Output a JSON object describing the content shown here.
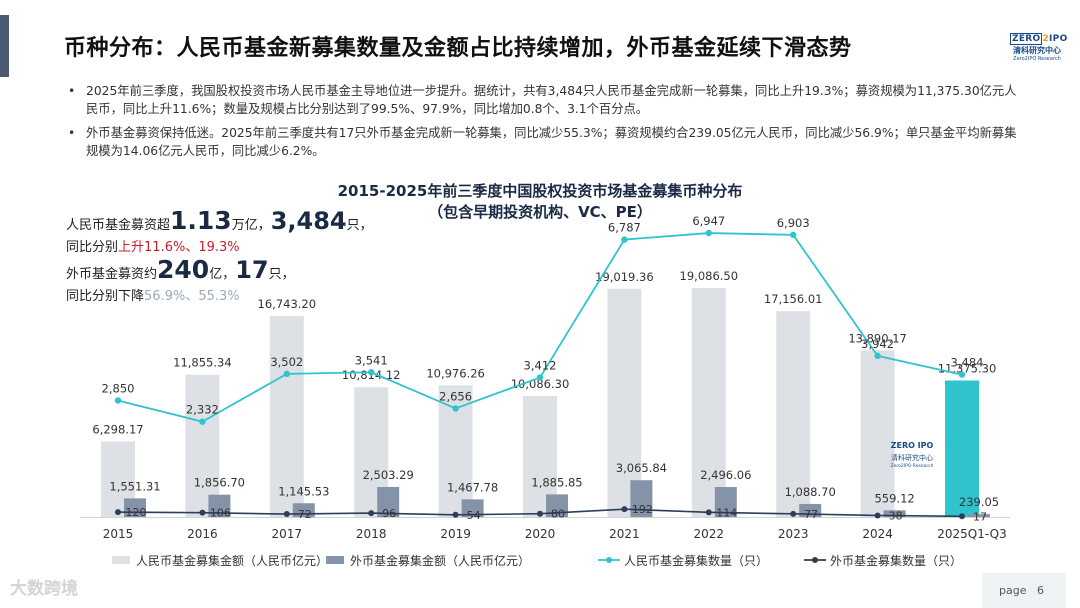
{
  "header": {
    "title": "币种分布：人民币基金新募集数量及金额占比持续增加，外币基金延续下滑态势"
  },
  "logo": {
    "line1a": "ZERO",
    "line1b": "IPO",
    "line2": "清科研究中心",
    "line3": "Zero2IPO Research"
  },
  "bullets": [
    {
      "marker": "•",
      "text": "2025年前三季度，我国股权投资市场人民币基金主导地位进一步提升。据统计，共有3,484只人民币基金完成新一轮募集，同比上升19.3%；募资规模为11,375.30亿元人民币，同比上升11.6%；数量及规模占比分别达到了99.5%、97.9%，同比增加0.8个、3.1个百分点。"
    },
    {
      "marker": "•",
      "text": "外币基金募资保持低迷。2025年前三季度共有17只外币基金完成新一轮募集，同比减少55.3%；募资规模约合239.05亿元人民币，同比减少56.9%；单只基金平均新募集规模为14.06亿元人民币，同比减少6.2%。"
    }
  ],
  "annotations": {
    "rmb_line1_pre": "人民币基金募资超",
    "rmb_line1_big": "1.13",
    "rmb_line1_unit": "万亿，",
    "rmb_line1_num": "3,484",
    "rmb_line1_unit2": "只，",
    "rmb_line2_pre": "同比分别",
    "rmb_line2_red": "上升11.6%、19.3%",
    "fx_line1_pre": "外币基金募资约",
    "fx_line1_big": "240",
    "fx_line1_unit": "亿，",
    "fx_line1_num": "17",
    "fx_line1_unit2": "只，",
    "fx_line2_pre": "同比分别下降",
    "fx_line2_gray": "56.9%、55.3%"
  },
  "footer": {
    "page_label": "page",
    "page_number": "6",
    "watermark": "大数跨境"
  },
  "chart_data": {
    "type": "bar",
    "title_line1": "2015-2025年前三季度中国股权投资市场基金募集币种分布",
    "title_line2": "（包含早期投资机构、VC、PE）",
    "categories": [
      "2015",
      "2016",
      "2017",
      "2018",
      "2019",
      "2020",
      "2021",
      "2022",
      "2023",
      "2024",
      "2025Q1-Q3"
    ],
    "series": [
      {
        "name": "人民币基金募集金额（人民币亿元）",
        "kind": "bar",
        "axis": "left",
        "color": "#dde1e6",
        "last_color": "#2fc4cc",
        "values": [
          6298.17,
          11855.34,
          16743.2,
          10814.12,
          10976.26,
          10086.3,
          19019.36,
          19086.5,
          17156.01,
          13890.17,
          11375.3
        ],
        "labels": [
          "6,298.17",
          "11,855.34",
          "16,743.20",
          "10,814.12",
          "10,976.26",
          "10,086.30",
          "19,019.36",
          "19,086.50",
          "17,156.01",
          "13,890.17",
          "11,375.30"
        ]
      },
      {
        "name": "外币基金募集金额（人民币亿元）",
        "kind": "bar",
        "axis": "left",
        "color": "#8593a8",
        "values": [
          1551.31,
          1856.7,
          1145.53,
          2503.29,
          1467.78,
          1885.85,
          3065.84,
          2496.06,
          1088.7,
          559.12,
          239.05
        ],
        "labels": [
          "1,551.31",
          "1,856.70",
          "1,145.53",
          "2,503.29",
          "1,467.78",
          "1,885.85",
          "3,065.84",
          "2,496.06",
          "1,088.70",
          "559.12",
          "239.05"
        ]
      },
      {
        "name": "人民币基金募集数量（只）",
        "kind": "line",
        "axis": "right",
        "color": "#2fc4cc",
        "values": [
          2850,
          2332,
          3502,
          3541,
          2656,
          3412,
          6787,
          6947,
          6903,
          3942,
          3484
        ],
        "labels": [
          "2,850",
          "2,332",
          "3,502",
          "3,541",
          "2,656",
          "3,412",
          "6,787",
          "6,947",
          "6,903",
          "3,942",
          "3,484"
        ]
      },
      {
        "name": "外币基金募集数量（只）",
        "kind": "line",
        "axis": "right",
        "color": "#2e3e58",
        "values": [
          120,
          106,
          72,
          96,
          54,
          80,
          192,
          114,
          77,
          38,
          17
        ],
        "labels": [
          "120",
          "106",
          "72",
          "96",
          "54",
          "80",
          "192",
          "114",
          "77",
          "38",
          "17"
        ]
      }
    ],
    "legend_position": "bottom"
  }
}
